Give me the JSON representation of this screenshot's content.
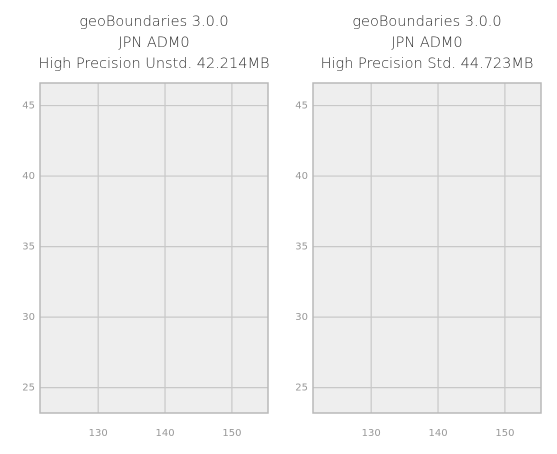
{
  "chart_data": [
    {
      "type": "map",
      "title": [
        "geoBoundaries 3.0.0",
        "JPN ADM0",
        "High Precision Unstd. 42.214MB"
      ],
      "xlim": [
        121.3,
        155.4
      ],
      "ylim": [
        23.2,
        46.6
      ],
      "xticks": [
        130,
        140,
        150
      ],
      "yticks": [
        25,
        30,
        35,
        40,
        45
      ],
      "grid": true,
      "color": "#f77474"
    },
    {
      "type": "map",
      "title": [
        "geoBoundaries 3.0.0",
        "JPN ADM0",
        "High Precision Std. 44.723MB"
      ],
      "xlim": [
        121.3,
        155.4
      ],
      "ylim": [
        23.2,
        46.6
      ],
      "xticks": [
        130,
        140,
        150
      ],
      "yticks": [
        25,
        30,
        35,
        40,
        45
      ],
      "grid": true,
      "color": "#f77474"
    }
  ]
}
